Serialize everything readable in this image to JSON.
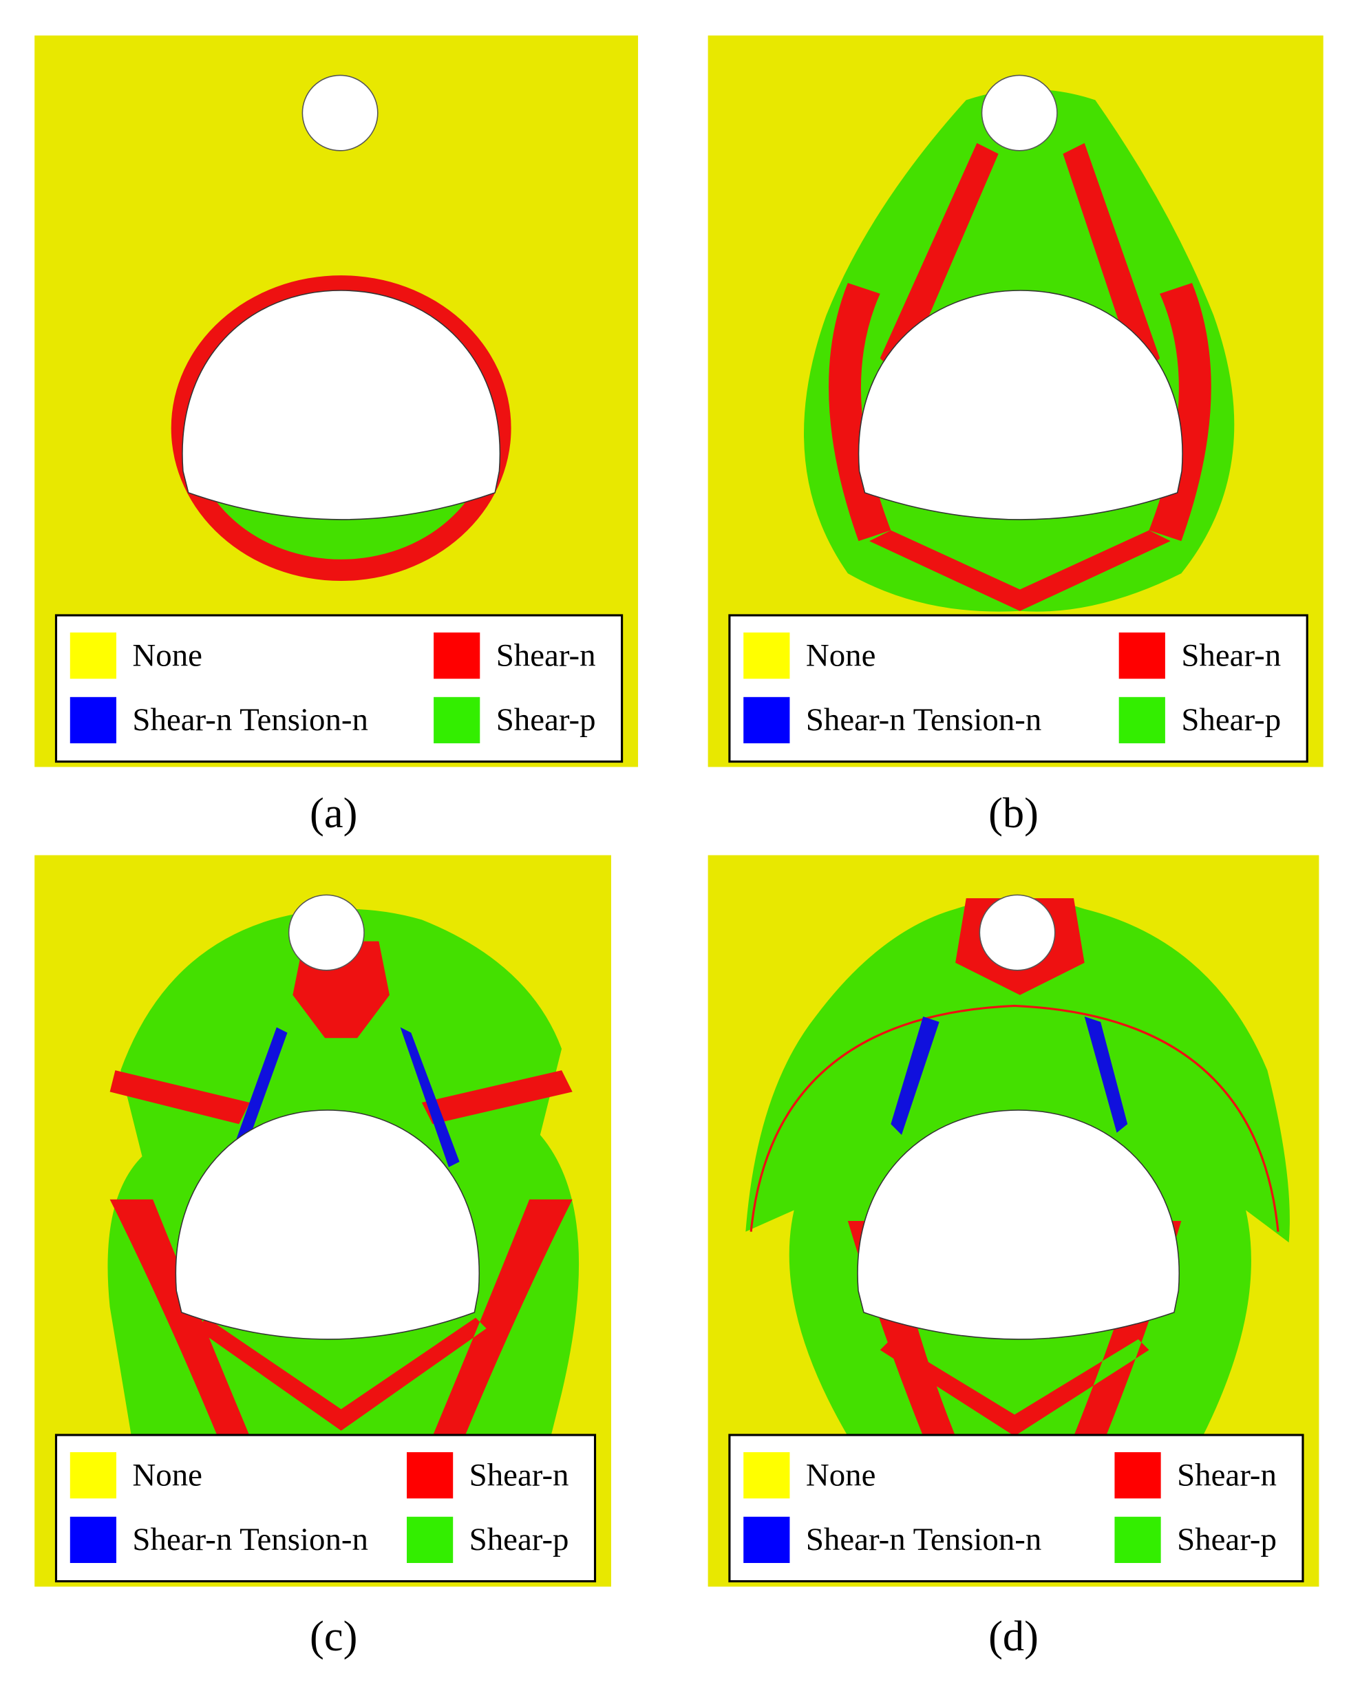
{
  "panels": [
    {
      "caption": "(a)"
    },
    {
      "caption": "(b)"
    },
    {
      "caption": "(c)"
    },
    {
      "caption": "(d)"
    }
  ],
  "legend": [
    {
      "label": "None",
      "color": "#ffff00"
    },
    {
      "label": "Shear-n",
      "color": "#ff0000"
    },
    {
      "label": "Shear-n Tension-n",
      "color": "#0000ff"
    },
    {
      "label": "Shear-p",
      "color": "#33ee00"
    }
  ]
}
